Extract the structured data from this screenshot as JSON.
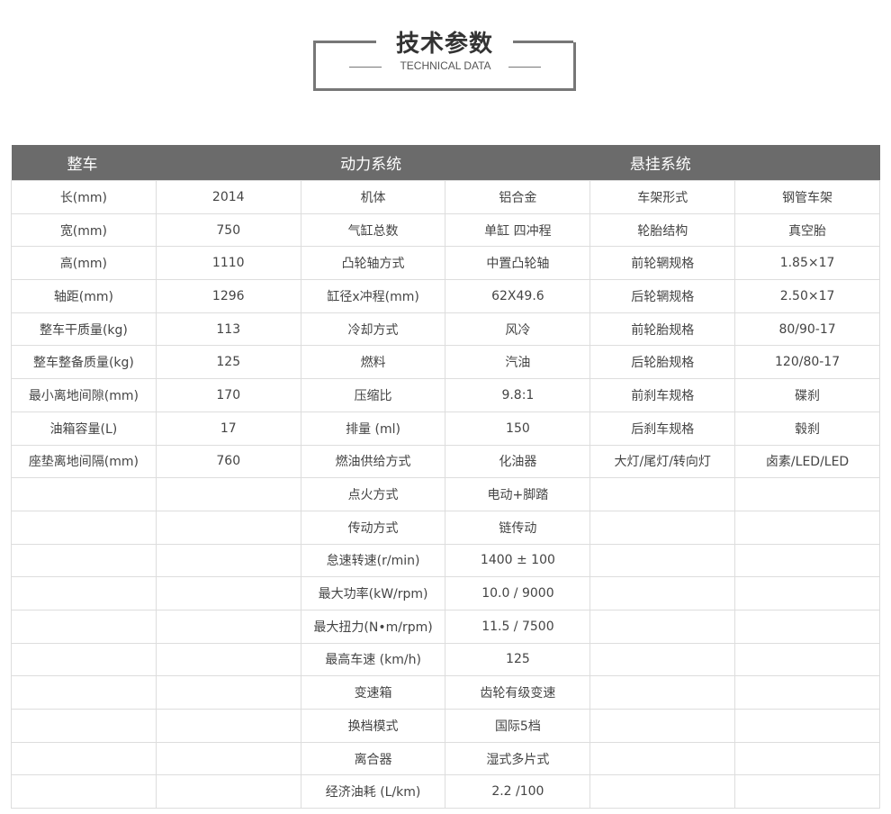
{
  "title": {
    "cn": "技术参数",
    "en": "TECHNICAL DATA"
  },
  "headers": [
    "整车",
    "动力系统",
    "悬挂系统"
  ],
  "rows": [
    [
      "长(mm)",
      "2014",
      "机体",
      "铝合金",
      "车架形式",
      "钢管车架"
    ],
    [
      "宽(mm)",
      "750",
      "气缸总数",
      "单缸 四冲程",
      "轮胎结构",
      "真空胎"
    ],
    [
      "高(mm)",
      "1110",
      "凸轮轴方式",
      "中置凸轮轴",
      "前轮辋规格",
      "1.85×17"
    ],
    [
      "轴距(mm)",
      "1296",
      "缸径x冲程(mm)",
      "62X49.6",
      "后轮辋规格",
      "2.50×17"
    ],
    [
      "整车干质量(kg)",
      "113",
      "冷却方式",
      "风冷",
      "前轮胎规格",
      "80/90-17"
    ],
    [
      "整车整备质量(kg)",
      "125",
      "燃料",
      "汽油",
      "后轮胎规格",
      "120/80-17"
    ],
    [
      "最小离地间隙(mm)",
      "170",
      "压缩比",
      "9.8:1",
      "前刹车规格",
      "碟刹"
    ],
    [
      "油箱容量(L)",
      "17",
      "排量 (ml)",
      "150",
      "后刹车规格",
      "毂刹"
    ],
    [
      "座垫离地间隔(mm)",
      "760",
      "燃油供给方式",
      "化油器",
      "大灯/尾灯/转向灯",
      "卤素/LED/LED"
    ],
    [
      "",
      "",
      "点火方式",
      "电动+脚踏",
      "",
      ""
    ],
    [
      "",
      "",
      "传动方式",
      "链传动",
      "",
      ""
    ],
    [
      "",
      "",
      "怠速转速(r/min)",
      "1400 ± 100",
      "",
      ""
    ],
    [
      "",
      "",
      "最大功率(kW/rpm)",
      "10.0 / 9000",
      "",
      ""
    ],
    [
      "",
      "",
      "最大扭力(N•m/rpm)",
      "11.5 / 7500",
      "",
      ""
    ],
    [
      "",
      "",
      "最高车速 (km/h)",
      "125",
      "",
      ""
    ],
    [
      "",
      "",
      "变速箱",
      "齿轮有级变速",
      "",
      ""
    ],
    [
      "",
      "",
      "换档模式",
      "国际5档",
      "",
      ""
    ],
    [
      "",
      "",
      "离合器",
      "湿式多片式",
      "",
      ""
    ],
    [
      "",
      "",
      "经济油耗 (L/km)",
      "2.2 /100",
      "",
      ""
    ]
  ]
}
